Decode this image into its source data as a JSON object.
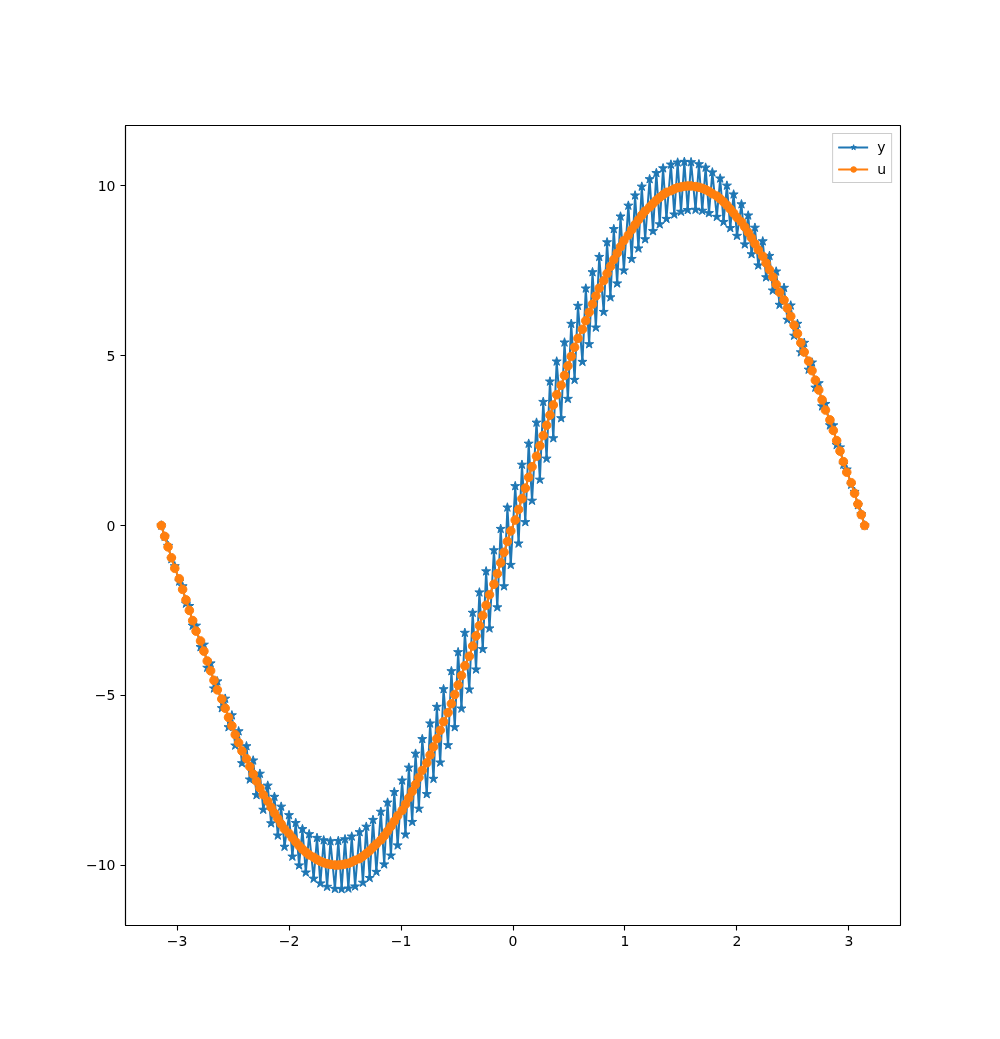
{
  "chart_data": {
    "type": "line",
    "xlim": [
      -3.46,
      3.46
    ],
    "ylim": [
      -11.78,
      11.78
    ],
    "xticks": [
      {
        "value": -3,
        "label": "−3"
      },
      {
        "value": -2,
        "label": "−2"
      },
      {
        "value": -1,
        "label": "−1"
      },
      0,
      1,
      2,
      3
    ],
    "yticks": [
      {
        "value": -10,
        "label": "−10"
      },
      {
        "value": -5,
        "label": "−5"
      },
      0,
      5,
      10
    ],
    "grid": false,
    "legend": "top right",
    "line_style": "solid",
    "marker": "circle",
    "x": [
      -3.14,
      -3.11,
      -3.08,
      -3.05,
      -3.02,
      -2.98,
      -2.95,
      -2.92,
      -2.89,
      -2.86,
      -2.83,
      -2.79,
      -2.76,
      -2.73,
      -2.7,
      -2.67,
      -2.64,
      -2.6,
      -2.57,
      -2.54,
      -2.51,
      -2.48,
      -2.45,
      -2.42,
      -2.38,
      -2.35,
      -2.32,
      -2.29,
      -2.26,
      -2.23,
      -2.19,
      -2.16,
      -2.13,
      -2.1,
      -2.07,
      -2.04,
      -2.0,
      -1.97,
      -1.94,
      -1.91,
      -1.88,
      -1.85,
      -1.82,
      -1.78,
      -1.75,
      -1.72,
      -1.69,
      -1.66,
      -1.63,
      -1.59,
      -1.56,
      -1.53,
      -1.5,
      -1.47,
      -1.44,
      -1.41,
      -1.37,
      -1.34,
      -1.31,
      -1.28,
      -1.25,
      -1.22,
      -1.18,
      -1.15,
      -1.12,
      -1.09,
      -1.06,
      -1.03,
      -0.99,
      -0.96,
      -0.93,
      -0.9,
      -0.87,
      -0.84,
      -0.81,
      -0.77,
      -0.74,
      -0.71,
      -0.68,
      -0.65,
      -0.62,
      -0.58,
      -0.55,
      -0.52,
      -0.49,
      -0.46,
      -0.43,
      -0.39,
      -0.36,
      -0.33,
      -0.3,
      -0.27,
      -0.24,
      -0.21,
      -0.17,
      -0.14,
      -0.11,
      -0.08,
      -0.05,
      -0.02,
      0.02,
      0.05,
      0.08,
      0.11,
      0.14,
      0.17,
      0.21,
      0.24,
      0.27,
      0.3,
      0.33,
      0.36,
      0.39,
      0.43,
      0.46,
      0.49,
      0.52,
      0.55,
      0.58,
      0.62,
      0.65,
      0.68,
      0.71,
      0.74,
      0.77,
      0.81,
      0.84,
      0.87,
      0.9,
      0.93,
      0.96,
      0.99,
      1.03,
      1.06,
      1.09,
      1.12,
      1.15,
      1.18,
      1.22,
      1.25,
      1.28,
      1.31,
      1.34,
      1.37,
      1.41,
      1.44,
      1.47,
      1.5,
      1.53,
      1.56,
      1.59,
      1.63,
      1.66,
      1.69,
      1.72,
      1.75,
      1.78,
      1.82,
      1.85,
      1.88,
      1.91,
      1.94,
      1.97,
      2.0,
      2.04,
      2.07,
      2.1,
      2.13,
      2.16,
      2.19,
      2.23,
      2.26,
      2.29,
      2.32,
      2.35,
      2.38,
      2.42,
      2.45,
      2.48,
      2.51,
      2.54,
      2.57,
      2.6,
      2.64,
      2.67,
      2.7,
      2.73,
      2.76,
      2.79,
      2.83,
      2.86,
      2.89,
      2.92,
      2.95,
      2.98,
      3.02,
      3.05,
      3.08,
      3.11,
      3.14
    ],
    "series": [
      {
        "name": "y",
        "color": "#1f77b4",
        "marker": "star",
        "values": [
          0,
          -0.33,
          -0.6,
          -0.99,
          -1.2,
          -1.65,
          -1.79,
          -2.3,
          -2.37,
          -2.95,
          -2.95,
          -3.58,
          -3.51,
          -4.19,
          -4.06,
          -4.8,
          -4.59,
          -5.38,
          -5.1,
          -5.94,
          -5.59,
          -6.48,
          -6.06,
          -7.0,
          -6.5,
          -7.48,
          -6.92,
          -7.94,
          -7.31,
          -8.37,
          -7.66,
          -8.77,
          -7.99,
          -9.13,
          -8.28,
          -9.46,
          -8.53,
          -9.75,
          -8.76,
          -10.01,
          -8.94,
          -10.22,
          -9.09,
          -10.4,
          -9.2,
          -10.54,
          -9.27,
          -10.64,
          -9.3,
          -10.7,
          -9.29,
          -10.71,
          -9.24,
          -10.69,
          -9.16,
          -10.63,
          -9.03,
          -10.52,
          -8.87,
          -10.38,
          -8.67,
          -10.2,
          -8.43,
          -9.98,
          -8.16,
          -9.72,
          -7.85,
          -9.42,
          -7.51,
          -9.1,
          -7.13,
          -8.73,
          -6.72,
          -8.34,
          -6.29,
          -7.91,
          -5.83,
          -7.46,
          -5.34,
          -6.98,
          -4.82,
          -6.47,
          -4.29,
          -5.94,
          -3.73,
          -5.39,
          -3.16,
          -4.83,
          -2.57,
          -4.24,
          -1.97,
          -3.64,
          -1.35,
          -3.03,
          -0.73,
          -2.41,
          -0.1,
          -1.79,
          0.53,
          -1.16,
          1.16,
          -0.53,
          1.79,
          0.1,
          2.41,
          0.73,
          3.03,
          1.35,
          3.64,
          1.97,
          4.24,
          2.57,
          4.83,
          3.16,
          5.39,
          3.73,
          5.94,
          4.29,
          6.47,
          4.82,
          6.98,
          5.34,
          7.46,
          5.83,
          7.91,
          6.29,
          8.34,
          6.72,
          8.73,
          7.13,
          9.1,
          7.51,
          9.42,
          7.85,
          9.72,
          8.16,
          9.98,
          8.43,
          10.2,
          8.67,
          10.38,
          8.87,
          10.52,
          9.03,
          10.63,
          9.16,
          10.69,
          9.24,
          10.71,
          9.29,
          10.7,
          9.3,
          10.64,
          9.27,
          10.54,
          9.2,
          10.4,
          9.09,
          10.22,
          8.94,
          10.01,
          8.76,
          9.75,
          8.53,
          9.46,
          8.28,
          9.13,
          7.99,
          8.77,
          7.66,
          8.37,
          7.31,
          7.94,
          6.92,
          7.48,
          6.5,
          7.0,
          6.06,
          6.48,
          5.59,
          5.94,
          5.1,
          5.38,
          4.59,
          4.8,
          4.06,
          4.19,
          3.51,
          3.58,
          2.95,
          2.95,
          2.37,
          2.3,
          1.79,
          1.65,
          1.2,
          0.99,
          0.6,
          0.33,
          0
        ]
      },
      {
        "name": "u",
        "color": "#ff7f0e",
        "values": [
          0,
          -0.32,
          -0.63,
          -0.95,
          -1.26,
          -1.57,
          -1.88,
          -2.19,
          -2.5,
          -2.8,
          -3.11,
          -3.4,
          -3.7,
          -3.99,
          -4.28,
          -4.56,
          -4.84,
          -5.11,
          -5.38,
          -5.65,
          -5.9,
          -6.16,
          -6.4,
          -6.64,
          -6.87,
          -7.1,
          -7.32,
          -7.53,
          -7.73,
          -7.93,
          -8.12,
          -8.3,
          -8.47,
          -8.63,
          -8.79,
          -8.94,
          -9.07,
          -9.2,
          -9.32,
          -9.43,
          -9.53,
          -9.62,
          -9.7,
          -9.77,
          -9.84,
          -9.89,
          -9.93,
          -9.96,
          -9.98,
          -10.0,
          -10.0,
          -9.99,
          -9.97,
          -9.95,
          -9.91,
          -9.86,
          -9.81,
          -9.74,
          -9.66,
          -9.58,
          -9.48,
          -9.38,
          -9.26,
          -9.14,
          -9.0,
          -8.86,
          -8.71,
          -8.55,
          -8.39,
          -8.21,
          -8.02,
          -7.83,
          -7.63,
          -7.42,
          -7.21,
          -6.99,
          -6.76,
          -6.52,
          -6.28,
          -6.03,
          -5.78,
          -5.51,
          -5.25,
          -4.98,
          -4.7,
          -4.42,
          -4.13,
          -3.85,
          -3.55,
          -3.25,
          -2.95,
          -2.65,
          -2.35,
          -2.04,
          -1.73,
          -1.42,
          -1.1,
          -0.79,
          -0.47,
          -0.16,
          0.16,
          0.47,
          0.79,
          1.1,
          1.42,
          1.73,
          2.04,
          2.35,
          2.65,
          2.95,
          3.25,
          3.55,
          3.85,
          4.13,
          4.42,
          4.7,
          4.98,
          5.25,
          5.51,
          5.78,
          6.03,
          6.28,
          6.52,
          6.76,
          6.99,
          7.21,
          7.42,
          7.63,
          7.83,
          8.02,
          8.21,
          8.39,
          8.55,
          8.71,
          8.86,
          9.0,
          9.14,
          9.26,
          9.38,
          9.48,
          9.58,
          9.66,
          9.74,
          9.81,
          9.86,
          9.91,
          9.95,
          9.97,
          9.99,
          10.0,
          10.0,
          9.98,
          9.96,
          9.93,
          9.89,
          9.84,
          9.77,
          9.7,
          9.62,
          9.53,
          9.43,
          9.32,
          9.2,
          9.07,
          8.94,
          8.79,
          8.63,
          8.47,
          8.3,
          8.12,
          7.93,
          7.73,
          7.53,
          7.32,
          7.1,
          6.87,
          6.64,
          6.4,
          6.16,
          5.9,
          5.65,
          5.38,
          5.11,
          4.84,
          4.56,
          4.28,
          3.99,
          3.7,
          3.4,
          3.11,
          2.8,
          2.5,
          2.19,
          1.88,
          1.57,
          1.26,
          0.95,
          0.63,
          0.32,
          0
        ]
      }
    ]
  }
}
